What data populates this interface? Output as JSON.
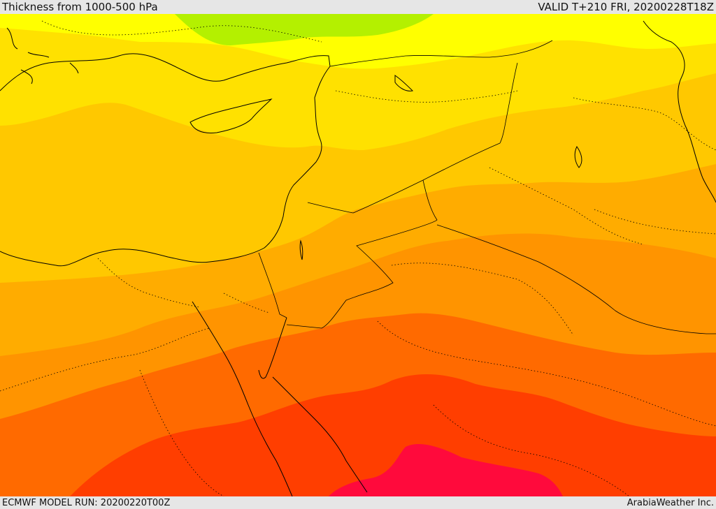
{
  "header": {
    "title": "Thickness from 1000-500 hPa",
    "valid": "VALID T+210 FRI, 20200228T18Z"
  },
  "footer": {
    "model_run": "ECMWF MODEL RUN: 20200220T00Z",
    "credit": "ArabiaWeather Inc."
  },
  "map": {
    "field": "1000-500 hPa thickness",
    "legend_shown": false,
    "colors": {
      "band_green": "#b4f000",
      "band_yellow": "#ffff00",
      "band_gold": "#ffe100",
      "band_amber": "#ffc800",
      "band_light_orange": "#ffac00",
      "band_orange": "#ff9400",
      "band_dark_orange": "#ff6a00",
      "band_red_orange": "#ff3e00",
      "band_crimson": "#ff0a3c",
      "coastline": "#000000"
    }
  }
}
